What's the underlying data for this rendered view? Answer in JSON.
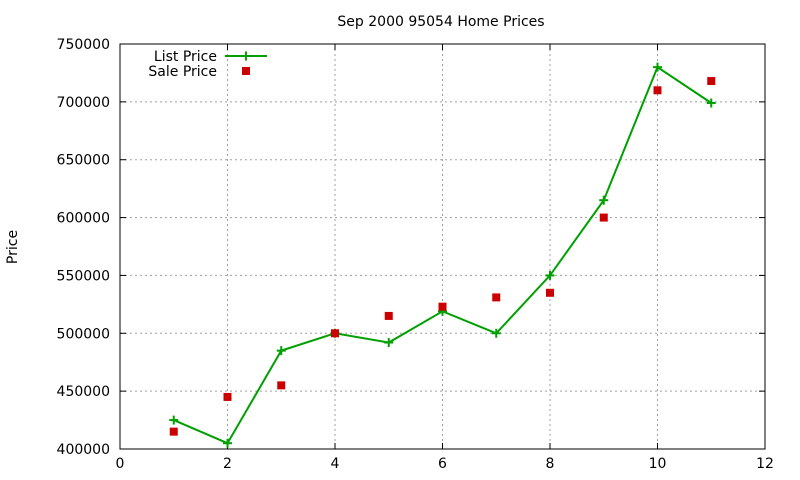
{
  "chart_data": {
    "type": "line",
    "title": "Sep 2000 95054 Home Prices",
    "xlabel": "",
    "ylabel": "Price",
    "xlim": [
      0,
      12
    ],
    "ylim": [
      400000,
      750000
    ],
    "x_ticks": [
      0,
      2,
      4,
      6,
      8,
      10,
      12
    ],
    "y_ticks": [
      400000,
      450000,
      500000,
      550000,
      600000,
      650000,
      700000,
      750000
    ],
    "grid": true,
    "legend_position": "top-left",
    "series": [
      {
        "name": "List Price",
        "kind": "line+points",
        "marker": "plus",
        "color": "#00a000",
        "x": [
          1,
          2,
          3,
          4,
          5,
          6,
          7,
          8,
          9,
          10,
          11
        ],
        "y": [
          425000,
          405000,
          485000,
          500000,
          492000,
          519000,
          500000,
          550000,
          615000,
          730000,
          699000
        ]
      },
      {
        "name": "Sale Price",
        "kind": "points",
        "marker": "square",
        "color": "#cc0000",
        "x": [
          1,
          2,
          3,
          4,
          5,
          6,
          7,
          8,
          9,
          10,
          11
        ],
        "y": [
          415000,
          445000,
          455000,
          500000,
          515000,
          523000,
          531000,
          535000,
          600000,
          710000,
          718000
        ]
      }
    ]
  }
}
